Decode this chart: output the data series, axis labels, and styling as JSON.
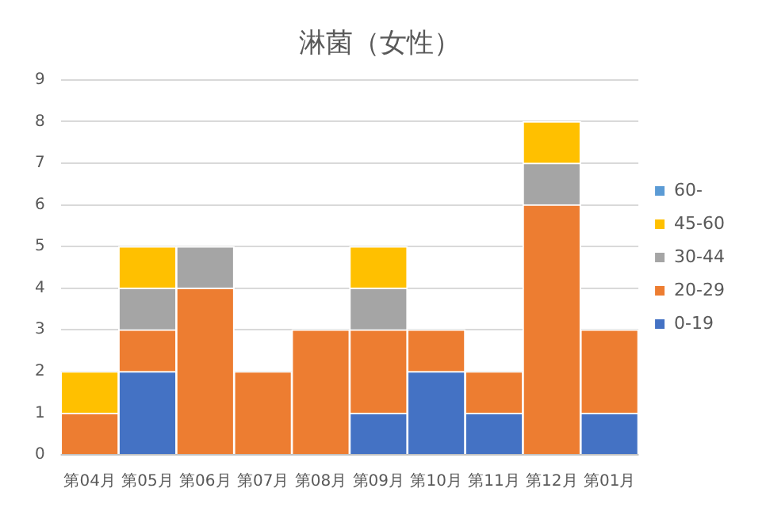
{
  "chart_data": {
    "type": "bar",
    "title": "淋菌（女性）",
    "stacked": true,
    "legend": "right",
    "grid": "y",
    "categories": [
      "第04月",
      "第05月",
      "第06月",
      "第07月",
      "第08月",
      "第09月",
      "第10月",
      "第11月",
      "第12月",
      "第01月"
    ],
    "ylim": [
      0,
      9
    ],
    "yticks": [
      0,
      1,
      2,
      3,
      4,
      5,
      6,
      7,
      8,
      9
    ],
    "series": [
      {
        "name": "0-19",
        "color": "#4472c4",
        "values": [
          0,
          2,
          0,
          0,
          0,
          1,
          2,
          1,
          0,
          1
        ]
      },
      {
        "name": "20-29",
        "color": "#ed7d31",
        "values": [
          1,
          1,
          4,
          2,
          3,
          2,
          1,
          1,
          6,
          2
        ]
      },
      {
        "name": "30-44",
        "color": "#a5a5a5",
        "values": [
          0,
          1,
          1,
          0,
          0,
          1,
          0,
          0,
          1,
          0
        ]
      },
      {
        "name": "45-60",
        "color": "#ffc000",
        "values": [
          1,
          1,
          0,
          0,
          0,
          1,
          0,
          0,
          1,
          0
        ]
      },
      {
        "name": "60-",
        "color": "#5b9bd5",
        "values": [
          0,
          0,
          0,
          0,
          0,
          0,
          0,
          0,
          0,
          0
        ]
      }
    ]
  }
}
